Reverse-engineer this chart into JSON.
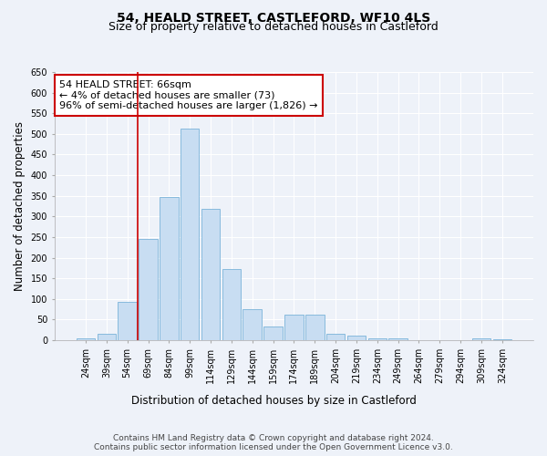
{
  "title": "54, HEALD STREET, CASTLEFORD, WF10 4LS",
  "subtitle": "Size of property relative to detached houses in Castleford",
  "xlabel": "Distribution of detached houses by size in Castleford",
  "ylabel": "Number of detached properties",
  "categories": [
    "24sqm",
    "39sqm",
    "54sqm",
    "69sqm",
    "84sqm",
    "99sqm",
    "114sqm",
    "129sqm",
    "144sqm",
    "159sqm",
    "174sqm",
    "189sqm",
    "204sqm",
    "219sqm",
    "234sqm",
    "249sqm",
    "264sqm",
    "279sqm",
    "294sqm",
    "309sqm",
    "324sqm"
  ],
  "values": [
    5,
    15,
    92,
    246,
    348,
    513,
    318,
    172,
    75,
    33,
    62,
    62,
    15,
    11,
    5,
    4,
    1,
    1,
    0,
    5,
    3
  ],
  "bar_color": "#c8ddf2",
  "bar_edge_color": "#7ab3d9",
  "vline_x_index": 2.5,
  "annotation_line1": "54 HEALD STREET: 66sqm",
  "annotation_line2": "← 4% of detached houses are smaller (73)",
  "annotation_line3": "96% of semi-detached houses are larger (1,826) →",
  "annotation_box_color": "white",
  "annotation_box_edge_color": "#cc0000",
  "vline_color": "#cc0000",
  "ylim": [
    0,
    650
  ],
  "yticks": [
    0,
    50,
    100,
    150,
    200,
    250,
    300,
    350,
    400,
    450,
    500,
    550,
    600,
    650
  ],
  "footer_line1": "Contains HM Land Registry data © Crown copyright and database right 2024.",
  "footer_line2": "Contains public sector information licensed under the Open Government Licence v3.0.",
  "background_color": "#eef2f9",
  "grid_color": "#ffffff",
  "title_fontsize": 10,
  "subtitle_fontsize": 9,
  "axis_label_fontsize": 8.5,
  "tick_fontsize": 7,
  "annotation_fontsize": 8,
  "footer_fontsize": 6.5
}
